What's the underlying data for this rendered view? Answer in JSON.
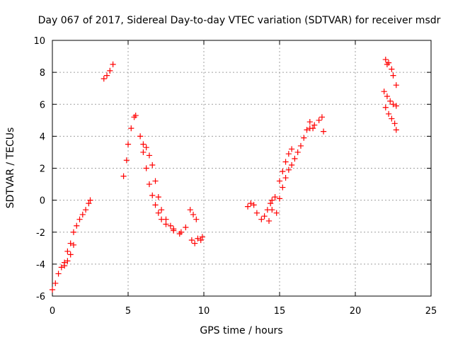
{
  "chart_data": {
    "type": "scatter",
    "title": "Day 067 of 2017, Sidereal Day-to-day VTEC variation (SDTVAR) for receiver msdr",
    "xlabel": "GPS time / hours",
    "ylabel": "SDTVAR / TECUs",
    "xlim": [
      0,
      25
    ],
    "ylim": [
      -6,
      10
    ],
    "xticks": [
      0,
      5,
      10,
      15,
      20,
      25
    ],
    "yticks": [
      -6,
      -4,
      -2,
      0,
      2,
      4,
      6,
      8,
      10
    ],
    "grid": true,
    "marker": "plus",
    "color": "#ff0000",
    "segments": [
      {
        "x": [
          0.0,
          0.2,
          0.4,
          0.6,
          0.8,
          1.0,
          1.2,
          1.4,
          1.6,
          1.8,
          2.0,
          2.2,
          2.4,
          2.5
        ],
        "y": [
          -5.6,
          -5.2,
          -4.6,
          -4.2,
          -3.9,
          -3.2,
          -2.7,
          -2.0,
          -1.6,
          -1.2,
          -0.9,
          -0.6,
          -0.2,
          0.0
        ]
      },
      {
        "x": [
          0.8,
          1.0,
          1.2,
          1.4
        ],
        "y": [
          -4.1,
          -3.8,
          -3.4,
          -2.8
        ]
      },
      {
        "x": [
          3.4,
          3.6,
          3.8,
          4.0
        ],
        "y": [
          7.6,
          7.8,
          8.1,
          8.5
        ]
      },
      {
        "x": [
          4.7,
          4.9,
          5.0,
          5.2,
          5.4,
          5.5
        ],
        "y": [
          1.5,
          2.5,
          3.5,
          4.5,
          5.2,
          5.3
        ]
      },
      {
        "x": [
          5.8,
          6.0,
          6.2,
          6.4,
          6.6,
          6.8,
          7.0,
          7.2,
          7.5,
          8.0,
          8.5,
          8.8
        ],
        "y": [
          4.0,
          3.0,
          2.0,
          1.0,
          0.3,
          -0.3,
          -0.8,
          -1.2,
          -1.5,
          -1.8,
          -2.0,
          -1.7
        ]
      },
      {
        "x": [
          6.0,
          6.2,
          6.4,
          6.6,
          6.8,
          7.0,
          7.2,
          7.5,
          7.8,
          8.0,
          8.4
        ],
        "y": [
          3.5,
          3.3,
          2.8,
          2.2,
          1.2,
          0.2,
          -0.6,
          -1.2,
          -1.6,
          -1.9,
          -2.1
        ]
      },
      {
        "x": [
          9.1,
          9.3,
          9.5
        ],
        "y": [
          -0.6,
          -0.9,
          -1.2
        ]
      },
      {
        "x": [
          9.2,
          9.4,
          9.6,
          9.8,
          9.9
        ],
        "y": [
          -2.5,
          -2.7,
          -2.4,
          -2.5,
          -2.3
        ]
      },
      {
        "x": [
          12.9,
          13.1,
          13.3,
          13.5,
          13.8,
          14.0,
          14.2,
          14.4,
          14.5
        ],
        "y": [
          -0.4,
          -0.2,
          -0.3,
          -0.8,
          -1.2,
          -1.0,
          -0.6,
          -0.2,
          0.0
        ]
      },
      {
        "x": [
          14.3,
          14.5,
          14.7,
          15.0,
          15.2,
          15.4,
          15.6,
          15.8,
          16.0,
          16.2,
          16.4,
          16.6,
          16.8,
          17.0,
          17.2
        ],
        "y": [
          -1.3,
          -0.6,
          0.2,
          1.2,
          1.8,
          2.4,
          2.9,
          3.2,
          2.6,
          3.0,
          3.4,
          3.9,
          4.4,
          4.9,
          4.5
        ]
      },
      {
        "x": [
          14.8,
          15.0,
          15.2,
          15.4,
          15.6,
          15.8
        ],
        "y": [
          -0.8,
          0.1,
          0.8,
          1.4,
          1.9,
          2.2
        ]
      },
      {
        "x": [
          17.0,
          17.3,
          17.6,
          17.8,
          17.9
        ],
        "y": [
          4.5,
          4.7,
          5.0,
          5.2,
          4.3
        ]
      },
      {
        "x": [
          22.0,
          22.1,
          22.2,
          22.4,
          22.5,
          22.7
        ],
        "y": [
          8.8,
          8.5,
          8.6,
          8.2,
          7.8,
          7.2
        ]
      },
      {
        "x": [
          21.9,
          22.1,
          22.3,
          22.5,
          22.7
        ],
        "y": [
          6.8,
          6.5,
          6.2,
          6.0,
          5.9
        ]
      },
      {
        "x": [
          22.0,
          22.2,
          22.4,
          22.6,
          22.7
        ],
        "y": [
          5.8,
          5.4,
          5.1,
          4.8,
          4.4
        ]
      }
    ]
  }
}
